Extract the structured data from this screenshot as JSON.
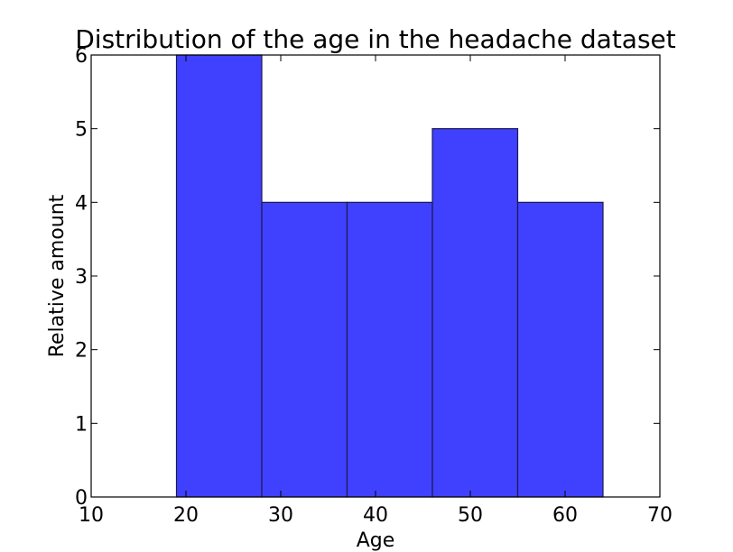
{
  "chart_data": {
    "type": "bar",
    "title": "Distribution of the age in the headache dataset",
    "xlabel": "Age",
    "ylabel": "Relative amount",
    "bins": [
      {
        "start": 19,
        "end": 28,
        "value": 6
      },
      {
        "start": 28,
        "end": 37,
        "value": 4
      },
      {
        "start": 37,
        "end": 46,
        "value": 4
      },
      {
        "start": 46,
        "end": 55,
        "value": 5
      },
      {
        "start": 55,
        "end": 64,
        "value": 4
      }
    ],
    "xlim": [
      10,
      70
    ],
    "ylim": [
      0,
      6
    ],
    "xticks": [
      "10",
      "20",
      "30",
      "40",
      "50",
      "60",
      "70"
    ],
    "yticks": [
      "0",
      "1",
      "2",
      "3",
      "4",
      "5",
      "6"
    ],
    "grid": false,
    "colors": {
      "bar_fill": "#4040ff",
      "bar_edge": "#1a1a4d",
      "axes": "#000000"
    }
  }
}
